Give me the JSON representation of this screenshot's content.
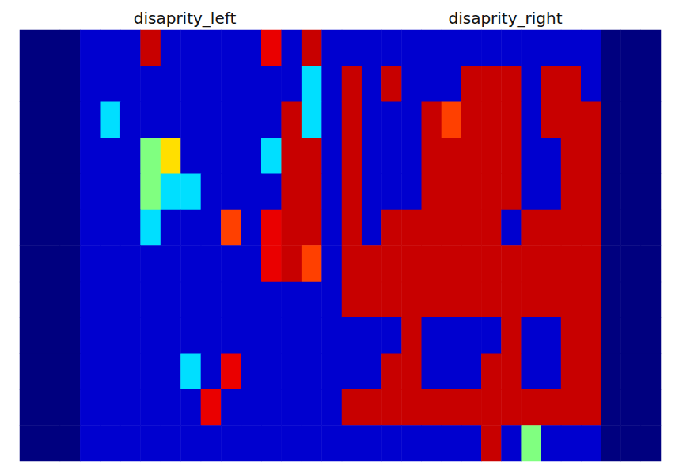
{
  "chart_data": [
    {
      "type": "heatmap",
      "title": "disaprity_left",
      "tick_labels": false,
      "cells": [
        [
          0,
          0,
          0,
          1,
          1,
          1,
          8,
          1,
          1,
          1,
          1,
          1,
          7,
          1,
          8,
          1
        ],
        [
          0,
          0,
          0,
          1,
          1,
          1,
          1,
          1,
          1,
          1,
          1,
          1,
          1,
          1,
          3,
          1
        ],
        [
          0,
          0,
          0,
          1,
          3,
          1,
          1,
          1,
          1,
          1,
          1,
          1,
          1,
          8,
          3,
          1
        ],
        [
          0,
          0,
          0,
          1,
          1,
          1,
          4,
          5,
          1,
          1,
          1,
          1,
          3,
          8,
          8,
          1
        ],
        [
          0,
          0,
          0,
          1,
          1,
          1,
          4,
          3,
          3,
          1,
          1,
          1,
          1,
          8,
          8,
          1
        ],
        [
          0,
          0,
          0,
          1,
          1,
          1,
          3,
          1,
          1,
          1,
          6,
          1,
          7,
          8,
          8,
          1
        ],
        [
          0,
          0,
          0,
          1,
          1,
          1,
          1,
          1,
          1,
          1,
          1,
          1,
          7,
          8,
          6,
          1
        ],
        [
          0,
          0,
          0,
          1,
          1,
          1,
          1,
          1,
          1,
          1,
          1,
          1,
          1,
          1,
          1,
          1
        ],
        [
          0,
          0,
          0,
          1,
          1,
          1,
          1,
          1,
          1,
          1,
          1,
          1,
          1,
          1,
          1,
          1
        ],
        [
          0,
          0,
          0,
          1,
          1,
          1,
          1,
          1,
          3,
          1,
          7,
          1,
          1,
          1,
          1,
          1
        ],
        [
          0,
          0,
          0,
          1,
          1,
          1,
          1,
          1,
          1,
          7,
          1,
          1,
          1,
          1,
          1,
          1
        ],
        [
          0,
          0,
          0,
          1,
          1,
          1,
          1,
          1,
          1,
          1,
          1,
          1,
          1,
          1,
          1,
          1
        ]
      ]
    },
    {
      "type": "heatmap",
      "title": "disaprity_right",
      "tick_labels": false,
      "cells": [
        [
          1,
          1,
          1,
          1,
          1,
          1,
          1,
          1,
          1,
          1,
          1,
          1,
          1,
          0,
          0,
          0
        ],
        [
          8,
          1,
          8,
          1,
          1,
          1,
          8,
          8,
          8,
          1,
          8,
          8,
          1,
          0,
          0,
          0
        ],
        [
          8,
          1,
          1,
          1,
          8,
          6,
          8,
          8,
          8,
          1,
          8,
          8,
          8,
          0,
          0,
          0
        ],
        [
          8,
          1,
          1,
          1,
          8,
          8,
          8,
          8,
          8,
          1,
          1,
          8,
          8,
          0,
          0,
          0
        ],
        [
          8,
          1,
          1,
          1,
          8,
          8,
          8,
          8,
          8,
          1,
          1,
          8,
          8,
          0,
          0,
          0
        ],
        [
          8,
          1,
          8,
          8,
          8,
          8,
          8,
          8,
          1,
          8,
          8,
          8,
          8,
          0,
          0,
          0
        ],
        [
          8,
          8,
          8,
          8,
          8,
          8,
          8,
          8,
          8,
          8,
          8,
          8,
          8,
          0,
          0,
          0
        ],
        [
          8,
          8,
          8,
          8,
          8,
          8,
          8,
          8,
          8,
          8,
          8,
          8,
          8,
          0,
          0,
          0
        ],
        [
          1,
          1,
          1,
          8,
          1,
          1,
          1,
          1,
          8,
          1,
          1,
          8,
          8,
          0,
          0,
          0
        ],
        [
          1,
          1,
          8,
          8,
          1,
          1,
          1,
          8,
          8,
          1,
          1,
          8,
          8,
          0,
          0,
          0
        ],
        [
          8,
          8,
          8,
          8,
          8,
          8,
          8,
          8,
          8,
          8,
          8,
          8,
          8,
          0,
          0,
          0
        ],
        [
          1,
          1,
          1,
          1,
          1,
          1,
          1,
          8,
          1,
          4,
          1,
          1,
          1,
          0,
          0,
          0
        ]
      ]
    }
  ]
}
